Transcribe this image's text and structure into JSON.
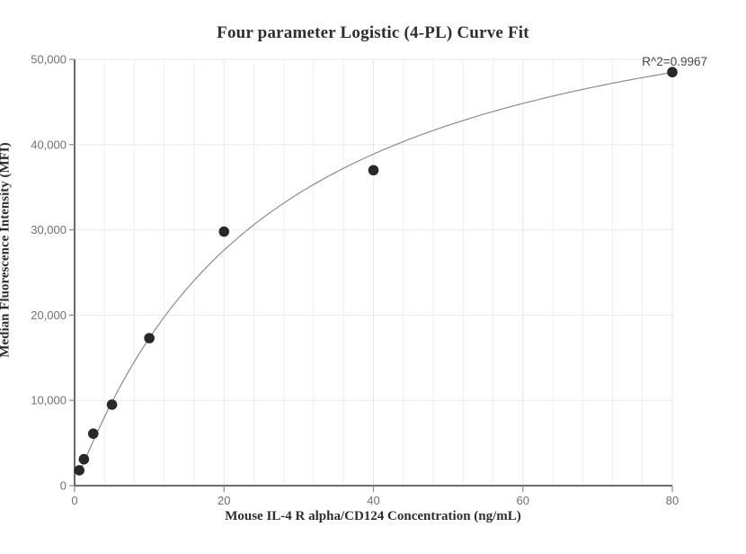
{
  "chart_data": {
    "type": "scatter",
    "title": "Four parameter Logistic (4-PL) Curve Fit",
    "xlabel": "Mouse IL-4 R alpha/CD124 Concentration (ng/mL)",
    "ylabel": "Median Fluorescence Intensity (MFI)",
    "annotation": "R^2=0.9967",
    "x": [
      0.625,
      1.25,
      2.5,
      5,
      10,
      20,
      40,
      80
    ],
    "y": [
      1800,
      3100,
      6100,
      9500,
      17300,
      29800,
      37000,
      48500
    ],
    "fit": {
      "type": "4PL",
      "r_squared": 0.9967,
      "a": 200,
      "b": 1.05,
      "c": 25.5,
      "d": 63000,
      "x_start": 0.625,
      "x_end": 80
    },
    "xlim": [
      0,
      80
    ],
    "ylim": [
      0,
      50000
    ],
    "x_ticks": [
      0,
      20,
      40,
      60,
      80
    ],
    "y_ticks": [
      0,
      10000,
      20000,
      30000,
      40000,
      50000
    ],
    "x_minor_grid_step": 4,
    "grid": true,
    "legend": "none",
    "colors": {
      "axis": "#56585f",
      "grid_minor": "#edeff6",
      "grid_major": "#e4e8f1",
      "grid_horizontal": "#e7eaf2",
      "tick": "#8a8b90",
      "tick_label": "#6f7075",
      "point": "#28282c",
      "curve": "#8b8b90",
      "title": "#2e2e30",
      "annotation": "#46474c"
    }
  }
}
